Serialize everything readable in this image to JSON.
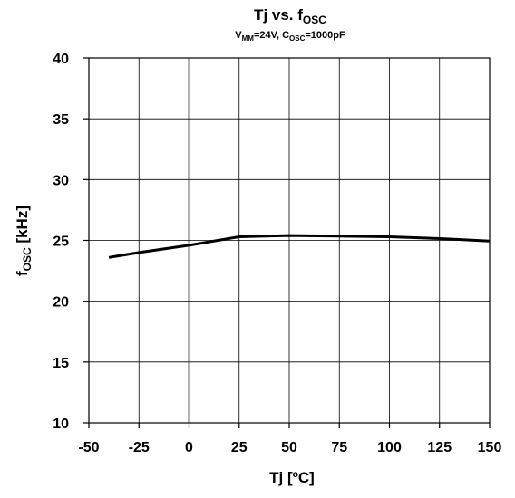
{
  "chart_data": {
    "type": "line",
    "title": {
      "main": "Tj vs. f",
      "main_sub": "OSC"
    },
    "subtitle": {
      "part1": "V",
      "part1_sub": "MM",
      "part2": "=24V, C",
      "part2_sub": "OSC",
      "part3": "=1000pF"
    },
    "xlabel": "Tj [ºC]",
    "ylabel": {
      "main": "f",
      "main_sub": "OSC",
      "rest": " [kHz]"
    },
    "xlim": [
      -50,
      150
    ],
    "ylim": [
      10,
      40
    ],
    "x_ticks": [
      "-50",
      "-25",
      "0",
      "25",
      "50",
      "75",
      "100",
      "125",
      "150"
    ],
    "y_ticks": [
      "10",
      "15",
      "20",
      "25",
      "30",
      "35",
      "40"
    ],
    "grid": true,
    "series": [
      {
        "x": [
          -40,
          -25,
          0,
          25,
          50,
          75,
          100,
          125,
          150
        ],
        "y": [
          23.6,
          24.0,
          24.6,
          25.3,
          25.4,
          25.35,
          25.3,
          25.15,
          24.95
        ]
      }
    ],
    "colors": {
      "line": "#000000",
      "grid": "#000000"
    }
  }
}
